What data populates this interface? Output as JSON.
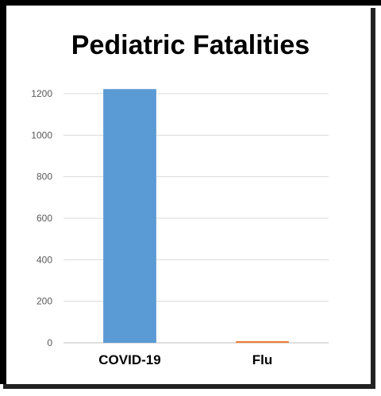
{
  "chart_data": {
    "type": "bar",
    "title": "Pediatric Fatalities",
    "categories": [
      "COVID-19",
      "Flu"
    ],
    "values": [
      1222,
      8
    ],
    "colors": [
      "#5b9bd5",
      "#ed7d31"
    ],
    "ylim": [
      0,
      1200
    ],
    "yticks": [
      0,
      200,
      400,
      600,
      800,
      1000,
      1200
    ],
    "grid": true,
    "legend": "none"
  }
}
